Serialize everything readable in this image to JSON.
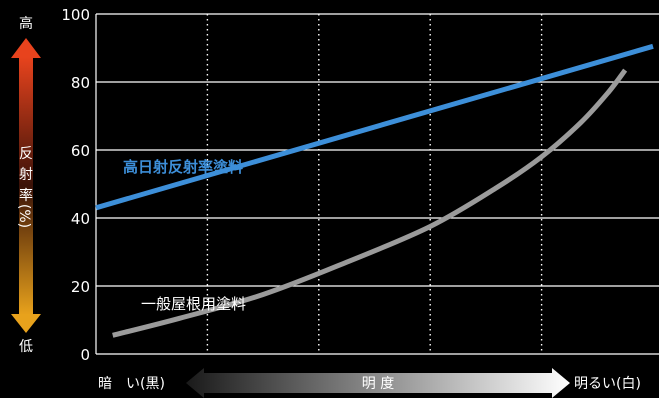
{
  "chart_data": {
    "type": "line",
    "title": "",
    "xlabel": "明 度",
    "ylabel_chars": [
      "反",
      "射",
      "率",
      "(%)"
    ],
    "y_high_label": "高",
    "y_low_label": "低",
    "x_left_label": "暗　い(黒)",
    "x_right_label": "明るい(白)",
    "ylim": [
      0,
      100
    ],
    "yticks": [
      "0",
      "20",
      "40",
      "60",
      "80",
      "100"
    ],
    "ytick_values": [
      0,
      20,
      40,
      60,
      80,
      100
    ],
    "xlim": [
      0,
      100
    ],
    "vertical_guides": [
      20,
      40,
      60,
      80
    ],
    "grid": true,
    "series": [
      {
        "name": "高日射反射率塗料",
        "color": "#3d8fd9",
        "x": [
          0,
          100
        ],
        "y": [
          43,
          90.5
        ]
      },
      {
        "name": "一般屋根用塗料",
        "color": "#9b9b9b",
        "x": [
          3,
          15,
          30,
          45,
          60,
          72,
          80,
          87,
          92,
          95
        ],
        "y": [
          5.5,
          10.5,
          17.5,
          27,
          37.5,
          49,
          58,
          68,
          77,
          83.5
        ]
      }
    ],
    "colors": {
      "arrow_top": "#e8431d",
      "arrow_mid": "#7a1c0f",
      "arrow_bottom": "#e8a21c",
      "x_arrow_left": "#2a2a2a",
      "x_arrow_right": "#ffffff",
      "frame": "#ffffff"
    }
  }
}
